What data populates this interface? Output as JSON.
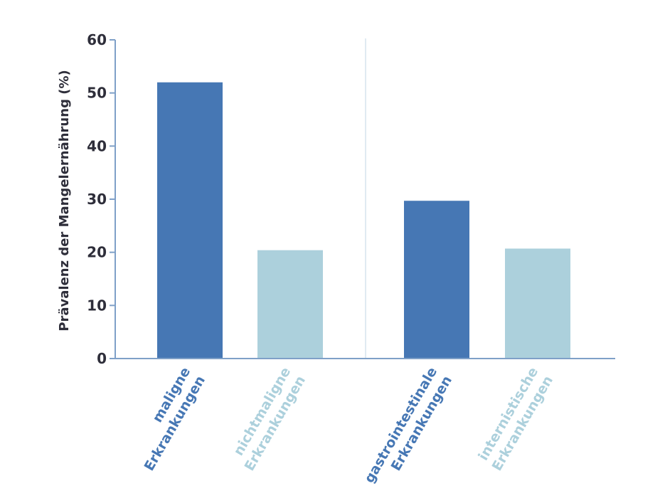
{
  "chart_data": {
    "type": "bar",
    "title": "",
    "xlabel": "",
    "ylabel": "Prävalenz der Mangelernährung (%)",
    "ylim": [
      0,
      60
    ],
    "yticks": [
      0,
      10,
      20,
      30,
      40,
      50,
      60
    ],
    "grid": false,
    "group_divider_after_index": 1,
    "categories": [
      {
        "lines": [
          "maligne",
          "Erkrankungen"
        ],
        "value": 52,
        "color": "#4677b4",
        "label_color": "#4677b4"
      },
      {
        "lines": [
          "nichtmaligne",
          "Erkrankungen"
        ],
        "value": 20.4,
        "color": "#acd0dc",
        "label_color": "#acd0dc"
      },
      {
        "lines": [
          "gastrointestinale",
          "Erkrankungen"
        ],
        "value": 29.7,
        "color": "#4677b4",
        "label_color": "#4677b4"
      },
      {
        "lines": [
          "internistische",
          "Erkrankungen"
        ],
        "value": 20.7,
        "color": "#acd0dc",
        "label_color": "#acd0dc"
      }
    ],
    "colors": {
      "axis": "#7fa0c8",
      "divider": "#d6e4ee",
      "text": "#2e2e3a"
    }
  }
}
